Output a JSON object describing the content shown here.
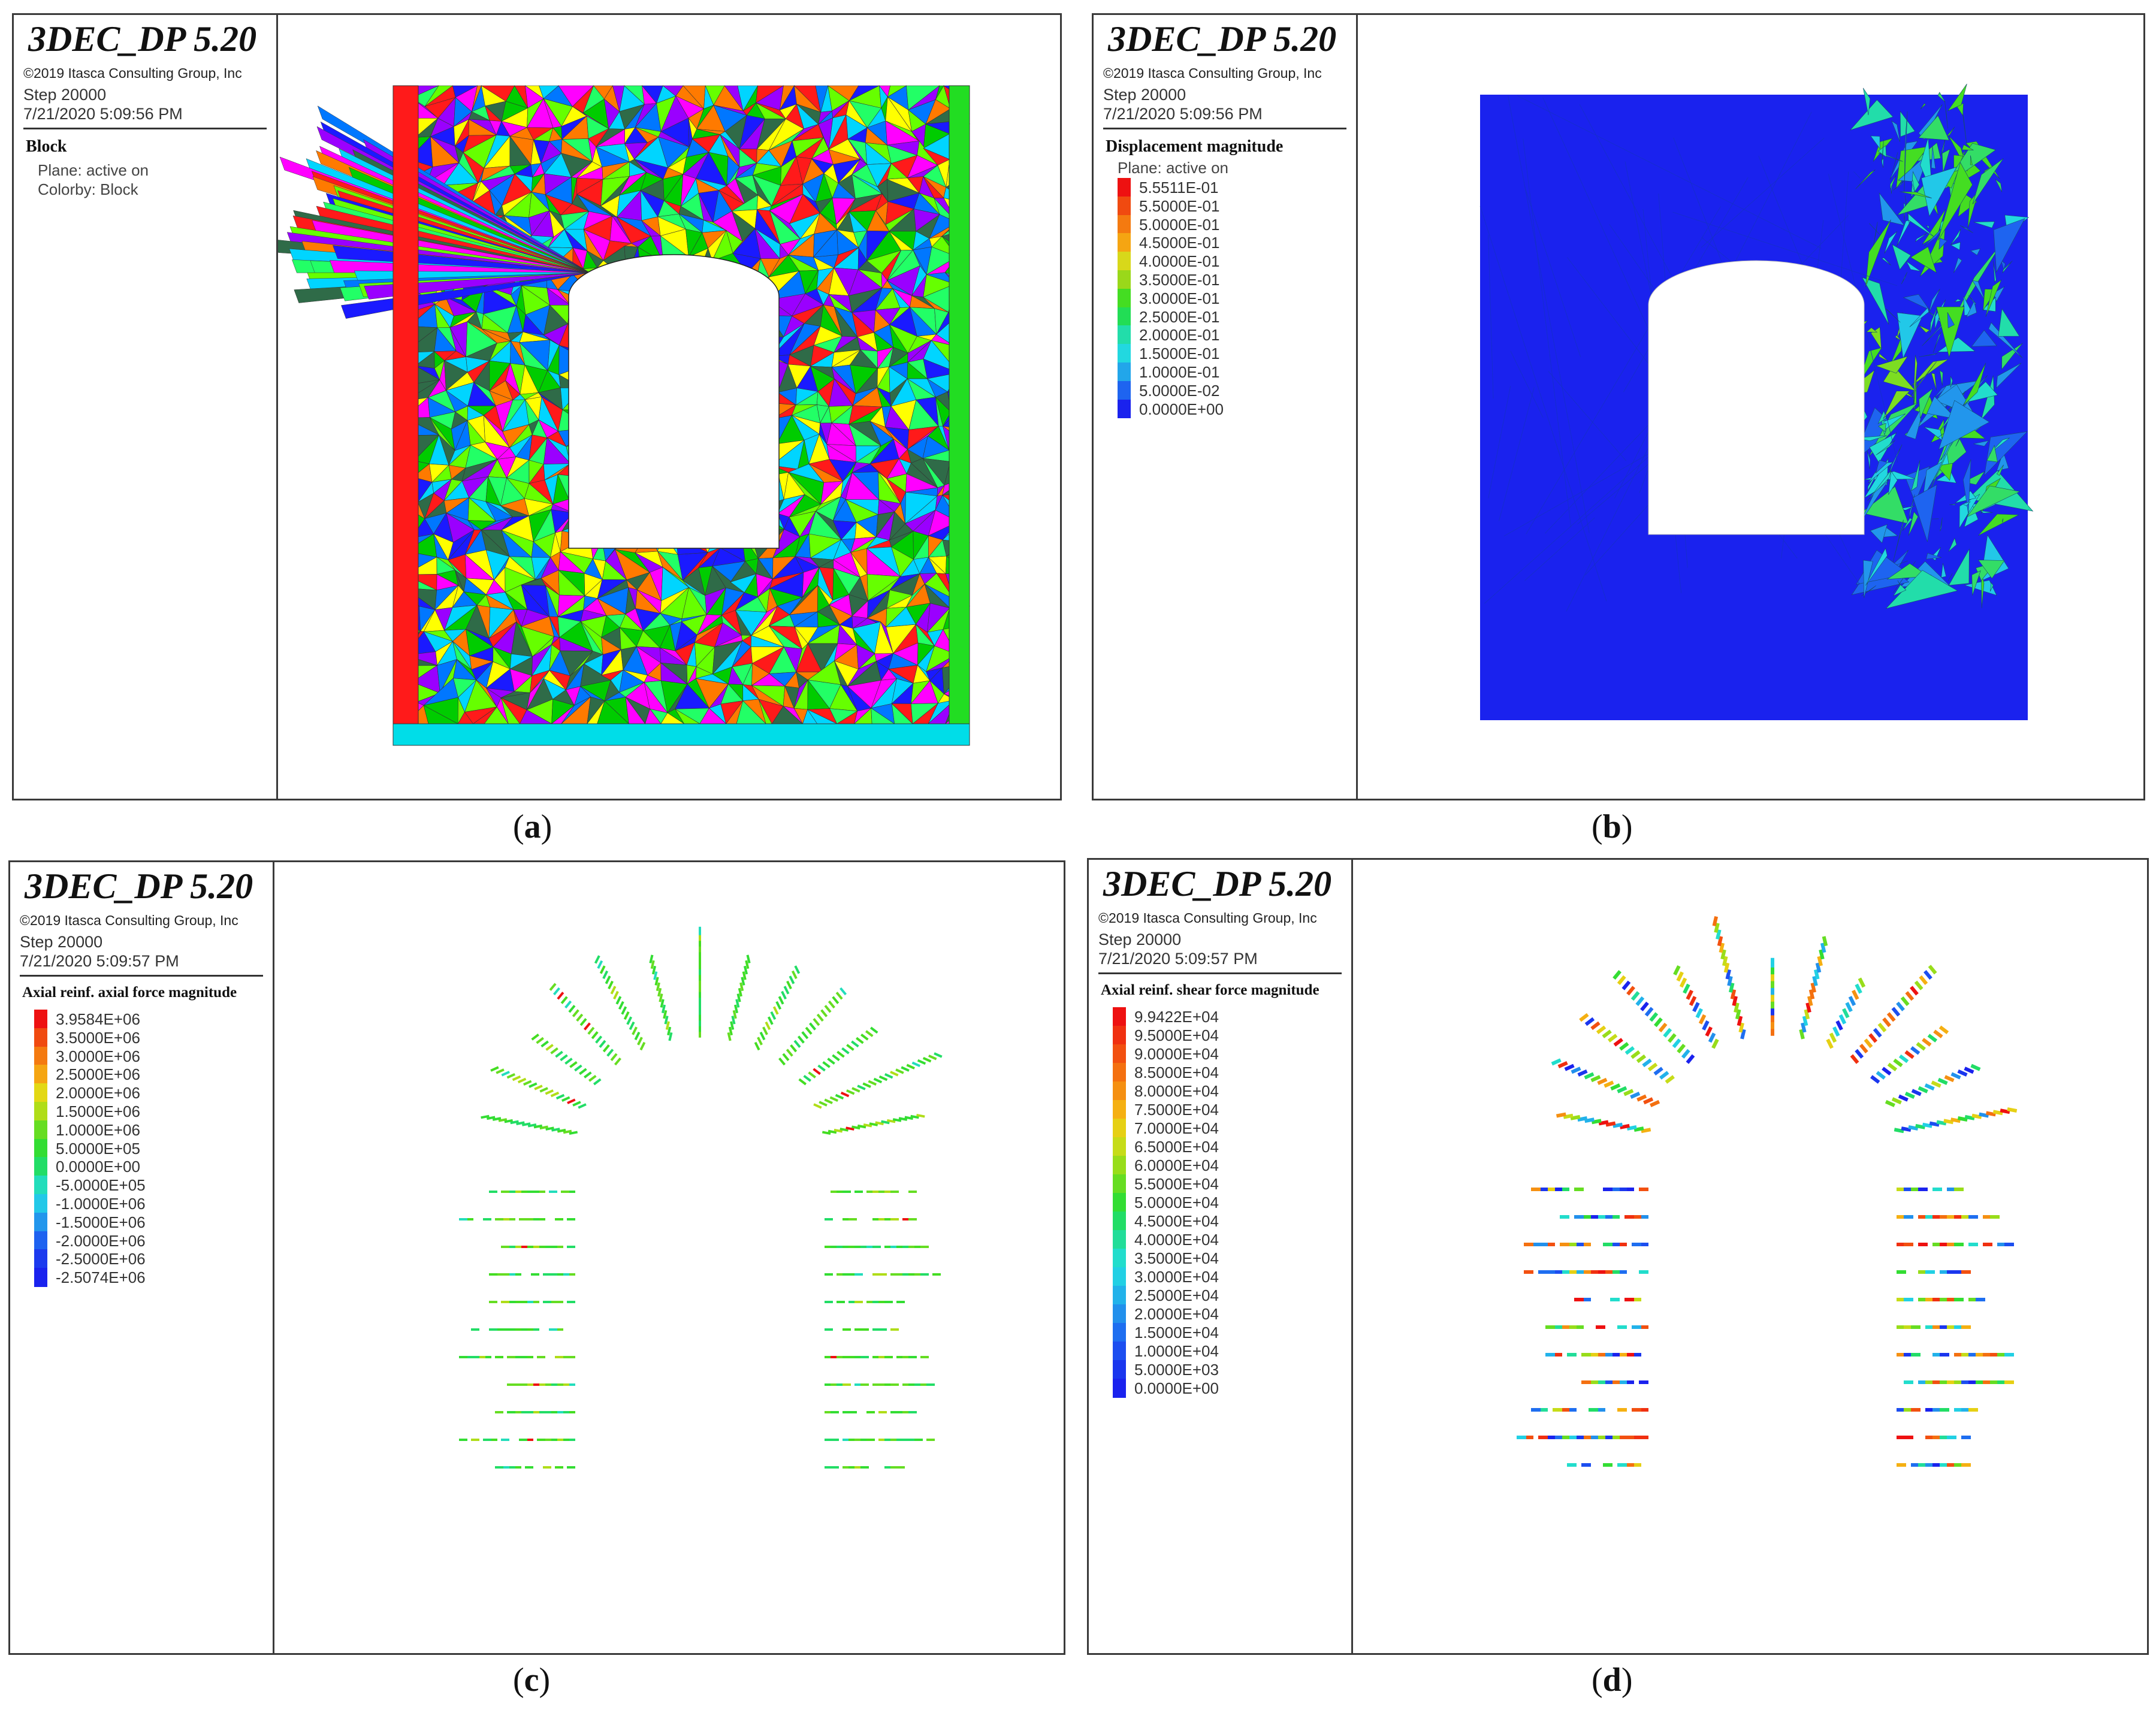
{
  "panels": {
    "a": {
      "software_title": "3DEC_DP 5.20",
      "copyright": "©2019 Itasca Consulting Group, Inc",
      "step": "Step 20000",
      "timestamp": "7/21/2020 5:09:56 PM",
      "plot_title": "Block",
      "lines": [
        "Plane: active on",
        "Colorby: Block"
      ],
      "caption_letter": "a"
    },
    "b": {
      "software_title": "3DEC_DP 5.20",
      "copyright": "©2019 Itasca Consulting Group, Inc",
      "step": "Step 20000",
      "timestamp": "7/21/2020 5:09:56 PM",
      "plot_title": "Displacement magnitude",
      "plane_line": "Plane: active on",
      "legend": [
        {
          "label": "5.5511E-01",
          "color": "#ee1111"
        },
        {
          "label": "5.5000E-01",
          "color": "#f04a10"
        },
        {
          "label": "5.0000E-01",
          "color": "#f47a10"
        },
        {
          "label": "4.5000E-01",
          "color": "#f5a512"
        },
        {
          "label": "4.0000E-01",
          "color": "#d8d81a"
        },
        {
          "label": "3.5000E-01",
          "color": "#9ad81a"
        },
        {
          "label": "3.0000E-01",
          "color": "#44dd22"
        },
        {
          "label": "2.5000E-01",
          "color": "#22dd55"
        },
        {
          "label": "2.0000E-01",
          "color": "#22ddaa"
        },
        {
          "label": "1.5000E-01",
          "color": "#22d8e0"
        },
        {
          "label": "1.0000E-01",
          "color": "#22a6ea"
        },
        {
          "label": "5.0000E-02",
          "color": "#1e64f0"
        },
        {
          "label": "0.0000E+00",
          "color": "#1a22ee"
        }
      ],
      "caption_letter": "b"
    },
    "c": {
      "software_title": "3DEC_DP 5.20",
      "copyright": "©2019 Itasca Consulting Group, Inc",
      "step": "Step 20000",
      "timestamp": "7/21/2020 5:09:57 PM",
      "plot_title": "Axial reinf. axial force magnitude",
      "legend": [
        {
          "label": "3.9584E+06",
          "color": "#ee1111"
        },
        {
          "label": "3.5000E+06",
          "color": "#f04a10"
        },
        {
          "label": "3.0000E+06",
          "color": "#f47a10"
        },
        {
          "label": "2.5000E+06",
          "color": "#f5a512"
        },
        {
          "label": "2.0000E+06",
          "color": "#e3d814"
        },
        {
          "label": "1.5000E+06",
          "color": "#b0dd18"
        },
        {
          "label": "1.0000E+06",
          "color": "#66dd22"
        },
        {
          "label": "5.0000E+05",
          "color": "#33dd33"
        },
        {
          "label": "0.0000E+00",
          "color": "#22dd66"
        },
        {
          "label": "-5.0000E+05",
          "color": "#22ddbb"
        },
        {
          "label": "-1.0000E+06",
          "color": "#22c8e8"
        },
        {
          "label": "-1.5000E+06",
          "color": "#2296ec"
        },
        {
          "label": "-2.0000E+06",
          "color": "#1e62f0"
        },
        {
          "label": "-2.5000E+06",
          "color": "#1c3aee"
        },
        {
          "label": "-2.5074E+06",
          "color": "#1a22ee"
        }
      ],
      "caption_letter": "c"
    },
    "d": {
      "software_title": "3DEC_DP 5.20",
      "copyright": "©2019 Itasca Consulting Group, Inc",
      "step": "Step 20000",
      "timestamp": "7/21/2020 5:09:57 PM",
      "plot_title": "Axial reinf. shear force magnitude",
      "legend": [
        {
          "label": "9.9422E+04",
          "color": "#ee1111"
        },
        {
          "label": "9.5000E+04",
          "color": "#f03010"
        },
        {
          "label": "9.0000E+04",
          "color": "#f25010"
        },
        {
          "label": "8.5000E+04",
          "color": "#f47010"
        },
        {
          "label": "8.0000E+04",
          "color": "#f59012"
        },
        {
          "label": "7.5000E+04",
          "color": "#f5b012"
        },
        {
          "label": "7.0000E+04",
          "color": "#e6d014"
        },
        {
          "label": "6.5000E+04",
          "color": "#c6dc18"
        },
        {
          "label": "6.0000E+04",
          "color": "#98dd1a"
        },
        {
          "label": "5.5000E+04",
          "color": "#66dd22"
        },
        {
          "label": "5.0000E+04",
          "color": "#33dd33"
        },
        {
          "label": "4.5000E+04",
          "color": "#22dd66"
        },
        {
          "label": "4.0000E+04",
          "color": "#22dd99"
        },
        {
          "label": "3.5000E+04",
          "color": "#22ddcc"
        },
        {
          "label": "3.0000E+04",
          "color": "#22d0e4"
        },
        {
          "label": "2.5000E+04",
          "color": "#22b2ea"
        },
        {
          "label": "2.0000E+04",
          "color": "#2290ec"
        },
        {
          "label": "1.5000E+04",
          "color": "#1e6ef0"
        },
        {
          "label": "1.0000E+04",
          "color": "#1c4ef0"
        },
        {
          "label": "5.0000E+03",
          "color": "#1a36ee"
        },
        {
          "label": "0.0000E+00",
          "color": "#1a22ee"
        }
      ],
      "caption_letter": "d"
    }
  },
  "colors": {
    "block_palette": [
      "#ff1a1a",
      "#1a1aff",
      "#ffff00",
      "#00d5ff",
      "#ff00ff",
      "#9a00ff",
      "#00cc00",
      "#2f6b48",
      "#ff7a00",
      "#22ff66",
      "#0077ff",
      "#66ff00"
    ],
    "mesh_background": "#1a22ee"
  }
}
